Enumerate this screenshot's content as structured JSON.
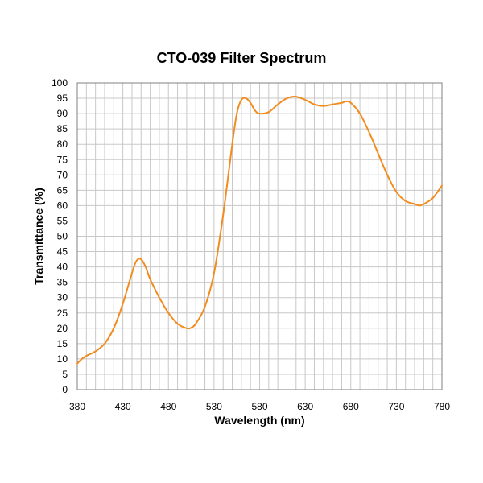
{
  "chart_data": {
    "type": "line",
    "title": "CTO-039 Filter Spectrum",
    "xlabel": "Wavelength (nm)",
    "ylabel": "Transmittance (%)",
    "xlim": [
      380,
      780
    ],
    "ylim": [
      0,
      100
    ],
    "x_ticks": [
      380,
      430,
      480,
      530,
      580,
      630,
      680,
      730,
      780
    ],
    "y_ticks": [
      0,
      5,
      10,
      15,
      20,
      25,
      30,
      35,
      40,
      45,
      50,
      55,
      60,
      65,
      70,
      75,
      80,
      85,
      90,
      95,
      100
    ],
    "grid": true,
    "series_color": "#f28c1e",
    "series": [
      {
        "x": [
          380,
          385,
          390,
          400,
          410,
          420,
          430,
          440,
          445,
          450,
          455,
          460,
          470,
          480,
          490,
          500,
          505,
          510,
          520,
          530,
          540,
          550,
          555,
          560,
          565,
          570,
          575,
          580,
          590,
          600,
          610,
          620,
          630,
          640,
          650,
          660,
          670,
          675,
          680,
          690,
          700,
          710,
          720,
          730,
          740,
          750,
          755,
          760,
          770,
          780
        ],
        "y": [
          8.5,
          10,
          11,
          12.5,
          15,
          20,
          28,
          38,
          42,
          42.5,
          40,
          36,
          30,
          25,
          21.5,
          20,
          20.2,
          21.5,
          27,
          38,
          57,
          80,
          90,
          94.5,
          95,
          93.5,
          91,
          90,
          90.5,
          93,
          95,
          95.5,
          94.5,
          93,
          92.5,
          93,
          93.5,
          94,
          93.5,
          90,
          84,
          77,
          70,
          64.5,
          61.5,
          60.5,
          60,
          60.5,
          62.5,
          66.5
        ]
      }
    ]
  }
}
